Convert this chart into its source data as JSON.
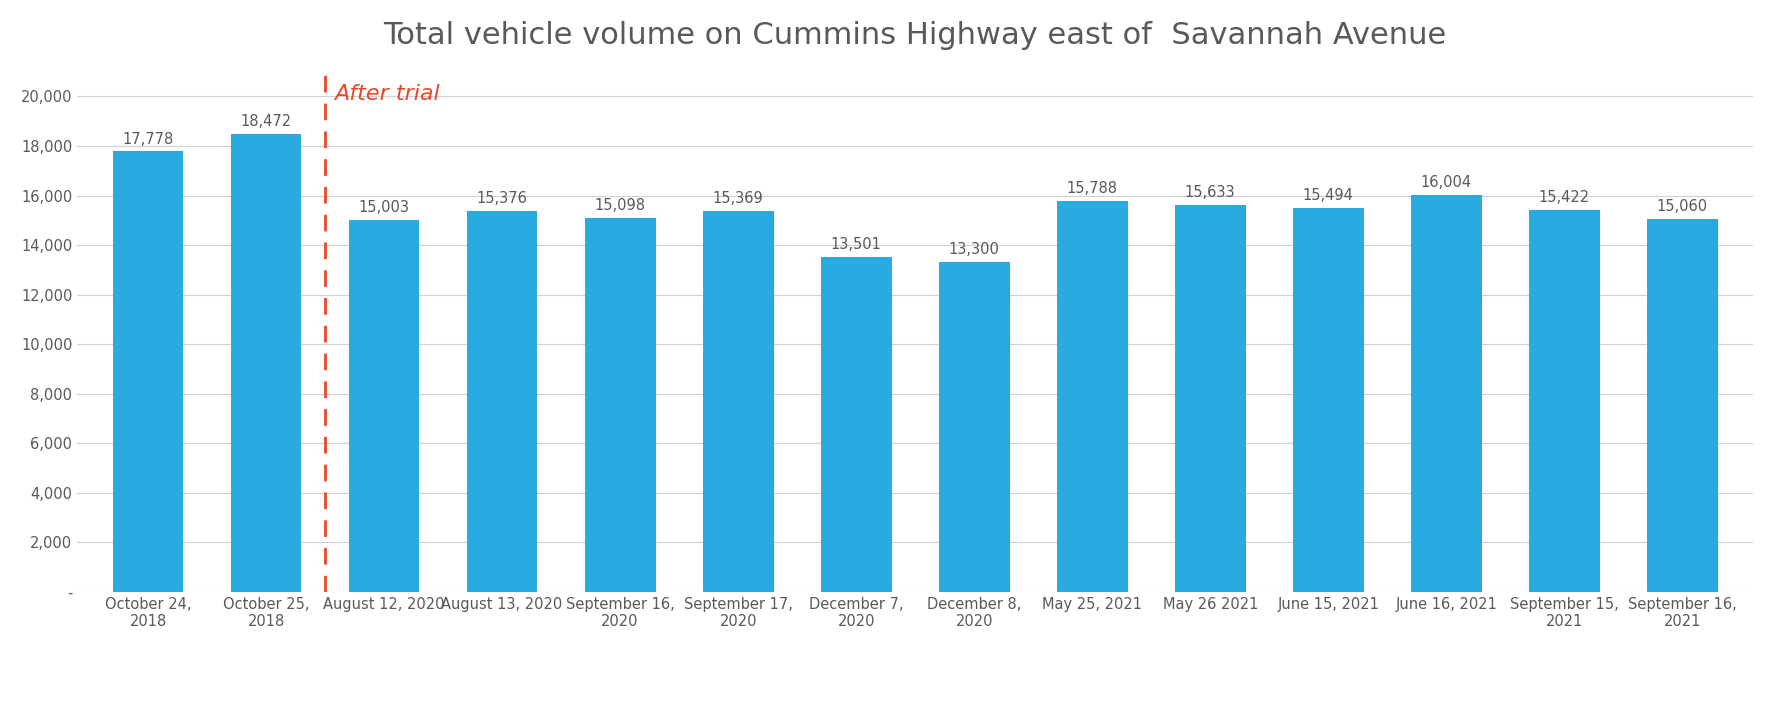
{
  "title": "Total vehicle volume on Cummins Highway east of  Savannah Avenue",
  "categories": [
    "October 24,\n2018",
    "October 25,\n2018",
    "August 12, 2020",
    "August 13, 2020",
    "September 16,\n2020",
    "September 17,\n2020",
    "December 7,\n2020",
    "December 8,\n2020",
    "May 25, 2021",
    "May 26 2021",
    "June 15, 2021",
    "June 16, 2021",
    "September 15,\n2021",
    "September 16,\n2021"
  ],
  "values": [
    17778,
    18472,
    15003,
    15376,
    15098,
    15369,
    13501,
    13300,
    15788,
    15633,
    15494,
    16004,
    15422,
    15060
  ],
  "bar_color": "#29ABE2",
  "title_color": "#595959",
  "label_color": "#595959",
  "annotation_color": "#595959",
  "after_trial_color": "#E8472A",
  "dashed_line_color": "#E8472A",
  "after_trial_text": "After trial",
  "ylim": [
    0,
    21000
  ],
  "yticks": [
    0,
    2000,
    4000,
    6000,
    8000,
    10000,
    12000,
    14000,
    16000,
    18000,
    20000
  ],
  "ytick_labels": [
    "-",
    "2,000",
    "4,000",
    "6,000",
    "8,000",
    "10,000",
    "12,000",
    "14,000",
    "16,000",
    "18,000",
    "20,000"
  ],
  "title_fontsize": 22,
  "annotation_fontsize": 10.5,
  "tick_fontsize": 10.5,
  "after_trial_fontsize": 16,
  "background_color": "#FFFFFF",
  "grid_color": "#D0D0D0"
}
